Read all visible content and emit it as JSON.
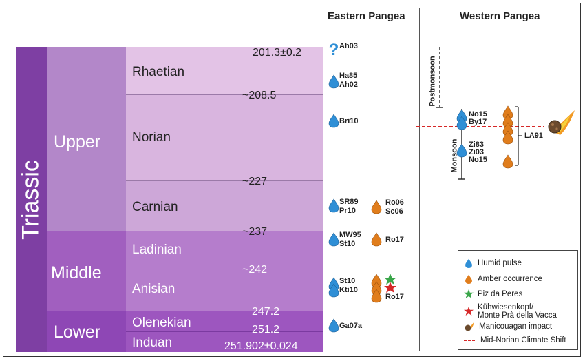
{
  "headers": {
    "east": "Eastern Pangea",
    "west": "Western Pangea"
  },
  "period": "Triassic",
  "epochs": {
    "upper": "Upper",
    "middle": "Middle",
    "lower": "Lower"
  },
  "stages": {
    "rhaetian": "Rhaetian",
    "norian": "Norian",
    "carnian": "Carnian",
    "ladinian": "Ladinian",
    "anisian": "Anisian",
    "olenekian": "Olenekian",
    "induan": "Induan"
  },
  "ages": {
    "a201": "201.3±0.2",
    "a208": "~208.5",
    "a227": "~227",
    "a237": "~237",
    "a242": "~242",
    "a247": "247.2",
    "a251": "251.2",
    "a251902": "251.902±0.024"
  },
  "east": {
    "ah03": "Ah03",
    "ha85_ah02": [
      "Ha85",
      "Ah02"
    ],
    "bri10": "Bri10",
    "sr89_pr10": [
      "SR89",
      "Pr10"
    ],
    "ro06_sc06": [
      "Ro06",
      "Sc06"
    ],
    "mw95_st10": [
      "MW95",
      "St10"
    ],
    "ro17_lad": "Ro17",
    "st10_kti10": [
      "St10",
      "Kti10"
    ],
    "ro17_ani": "Ro17",
    "ga07a": "Ga07a"
  },
  "west": {
    "postmonsoon": "Postmonsoon",
    "monsoon": "Monsoon",
    "no15_by17": [
      "No15",
      "By17"
    ],
    "zi_group": [
      "Zi83",
      "Zi03",
      "No15"
    ],
    "la91": "LA91"
  },
  "legend": {
    "humid": "Humid pulse",
    "amber": "Amber occurrence",
    "piz": "Piz da Peres",
    "kuh1": "Kühwiesenkopf/",
    "kuh2": "Monte Prà della Vacca",
    "mani": "Manicouagan impact",
    "shift": "Mid-Norian Climate Shift"
  },
  "colors": {
    "humid": "#2f8fd6",
    "amber": "#e07d1c",
    "green_star": "#3aa64a",
    "red_star": "#d62828",
    "shift_line": "#d62828",
    "period": "#7b3aa0"
  }
}
